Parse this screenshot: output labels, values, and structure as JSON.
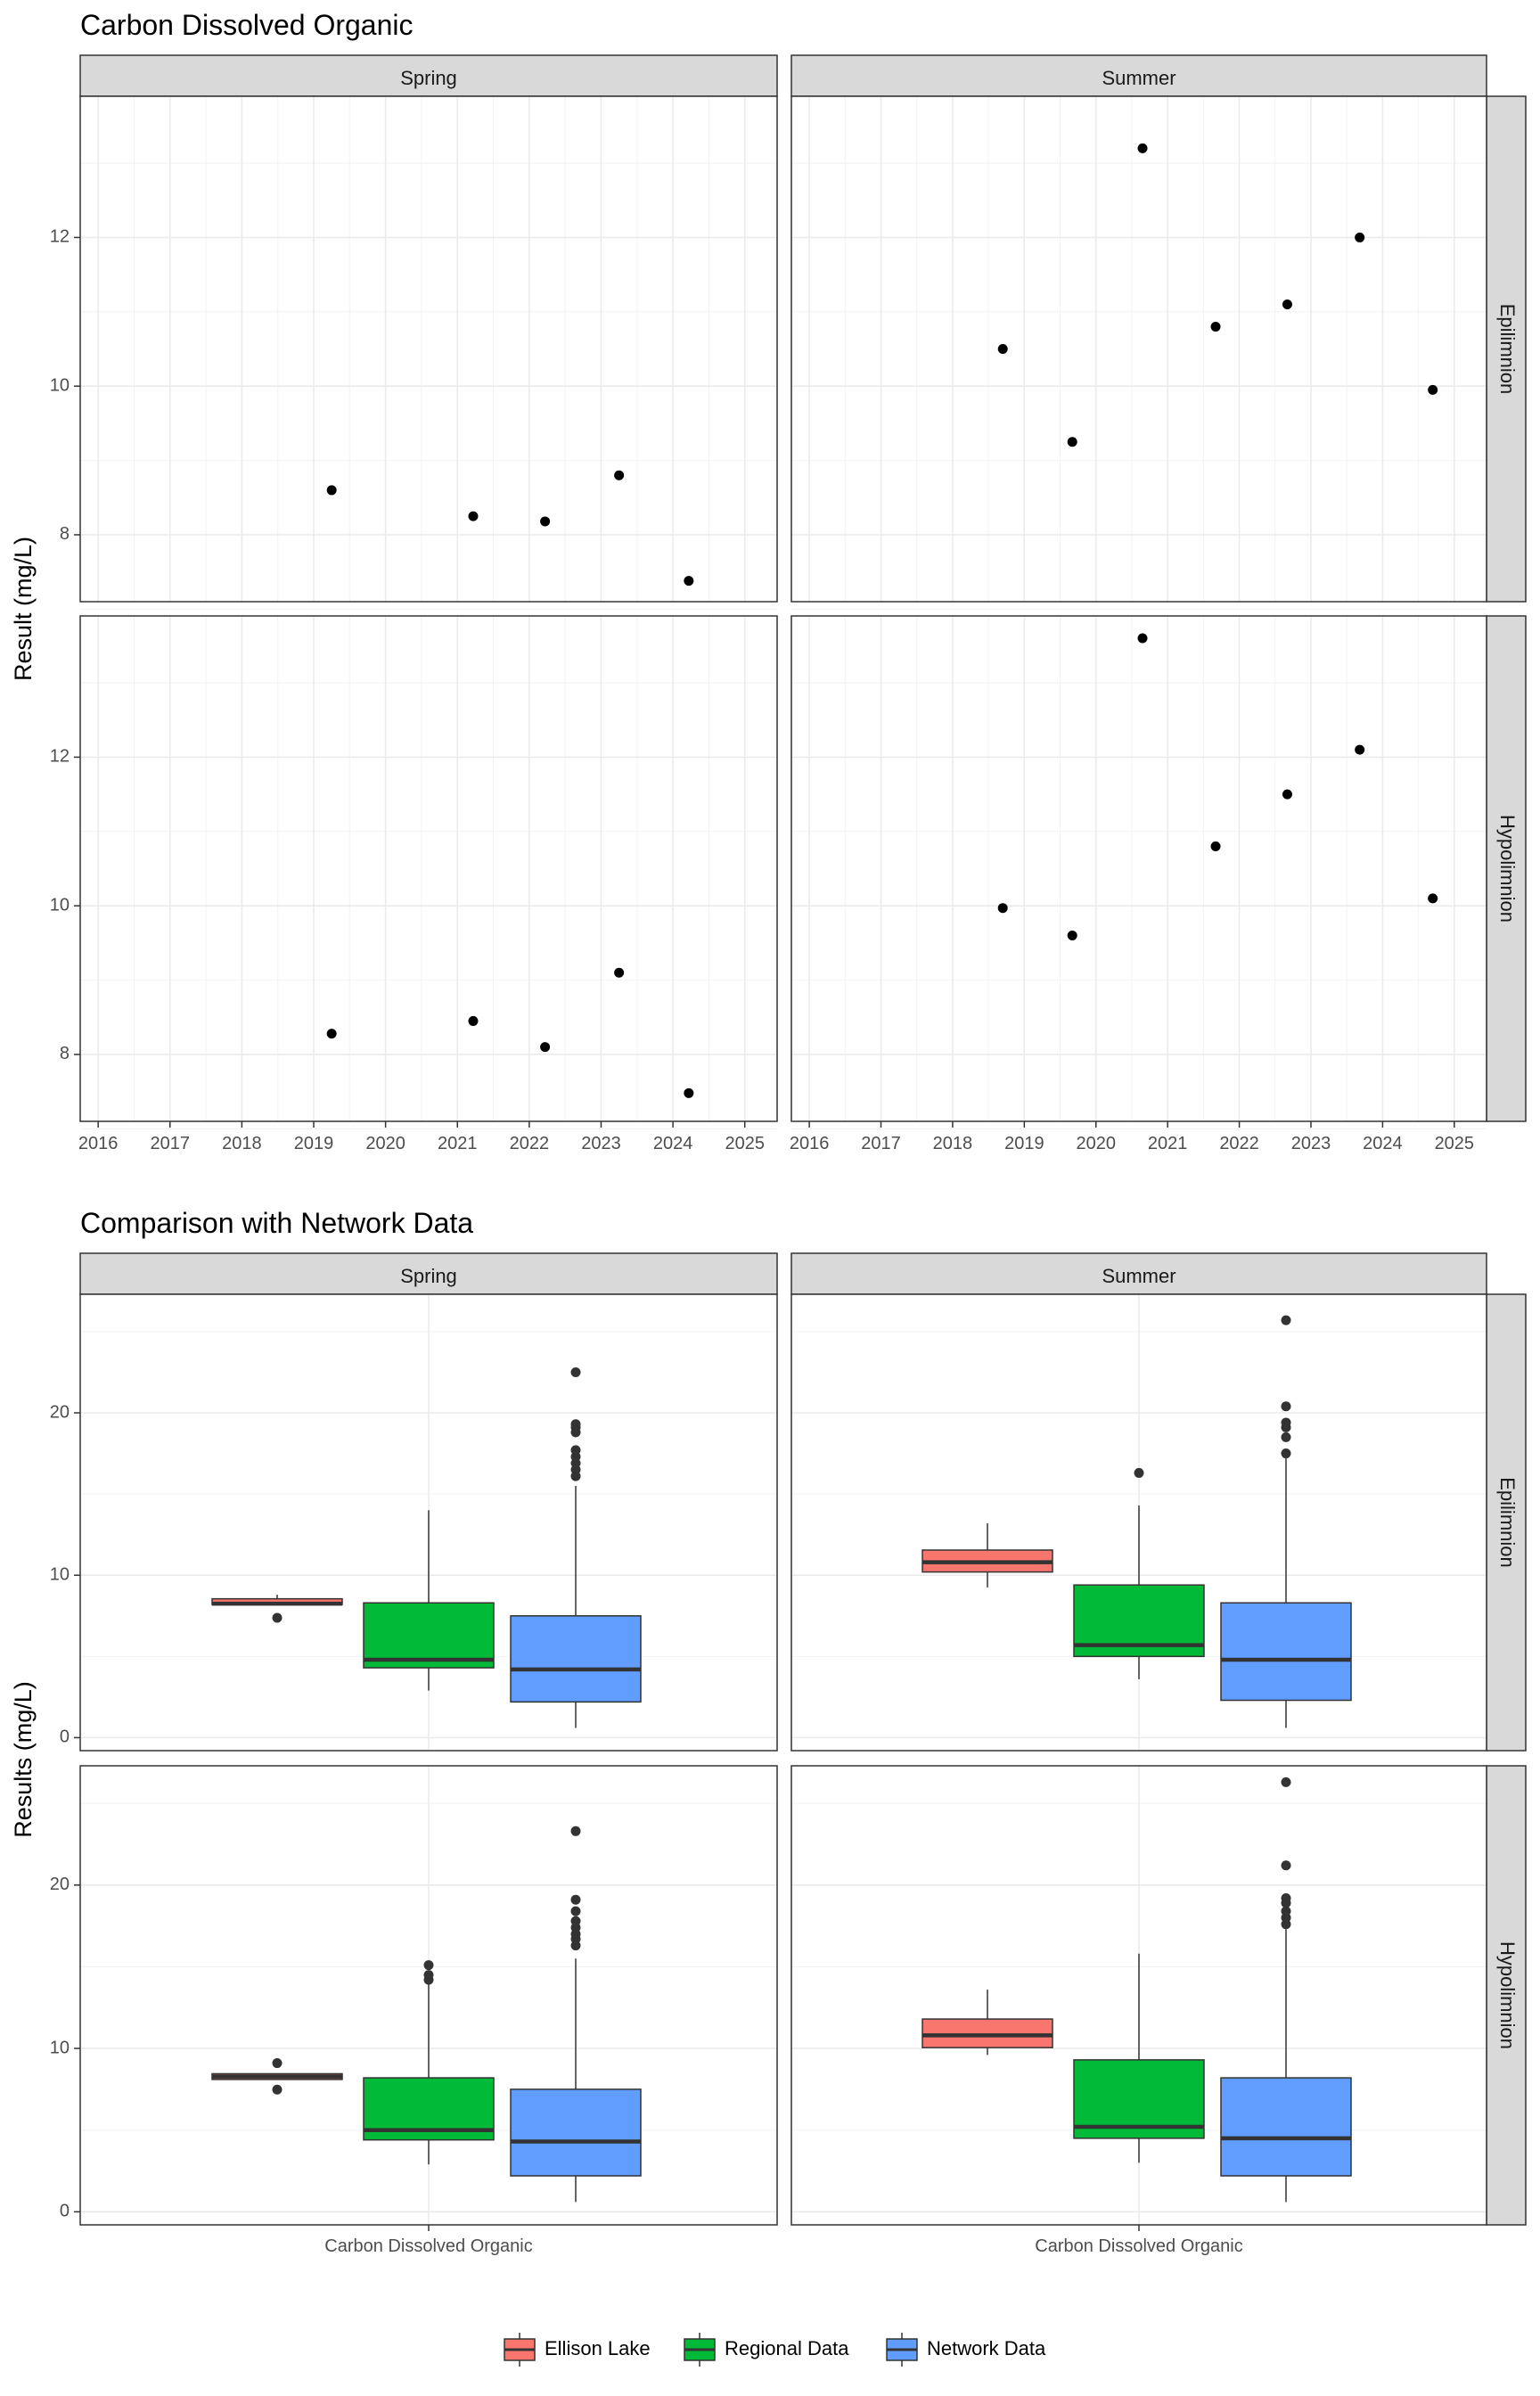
{
  "chart_data": [
    {
      "type": "scatter",
      "title": "Carbon Dissolved Organic",
      "ylabel": "Result (mg/L)",
      "xlabel": "",
      "x_range": [
        2015.75,
        2025.45
      ],
      "x_ticks": [
        2016,
        2017,
        2018,
        2019,
        2020,
        2021,
        2022,
        2023,
        2024,
        2025
      ],
      "y_range": [
        7.1,
        13.9
      ],
      "y_ticks": [
        8,
        10,
        12
      ],
      "grid": true,
      "columns": [
        "Spring",
        "Summer"
      ],
      "rows": [
        "Epilimnion",
        "Hypolimnion"
      ],
      "panels": [
        {
          "column": "Spring",
          "row": "Epilimnion",
          "points": [
            [
              2019.25,
              8.6
            ],
            [
              2021.22,
              8.25
            ],
            [
              2022.22,
              8.18
            ],
            [
              2023.25,
              8.8
            ],
            [
              2024.22,
              7.38
            ]
          ]
        },
        {
          "column": "Summer",
          "row": "Epilimnion",
          "points": [
            [
              2018.7,
              10.5
            ],
            [
              2019.67,
              9.25
            ],
            [
              2020.65,
              13.2
            ],
            [
              2021.67,
              10.8
            ],
            [
              2022.67,
              11.1
            ],
            [
              2023.68,
              12.0
            ],
            [
              2024.7,
              9.95
            ]
          ]
        },
        {
          "column": "Spring",
          "row": "Hypolimnion",
          "points": [
            [
              2019.25,
              8.28
            ],
            [
              2021.22,
              8.45
            ],
            [
              2022.22,
              8.1
            ],
            [
              2023.25,
              9.1
            ],
            [
              2024.22,
              7.48
            ]
          ]
        },
        {
          "column": "Summer",
          "row": "Hypolimnion",
          "points": [
            [
              2018.7,
              9.97
            ],
            [
              2019.67,
              9.6
            ],
            [
              2020.65,
              13.6
            ],
            [
              2021.67,
              10.8
            ],
            [
              2022.67,
              11.5
            ],
            [
              2023.68,
              12.1
            ],
            [
              2024.7,
              10.1
            ]
          ]
        }
      ]
    },
    {
      "type": "box",
      "title": "Comparison with Network Data",
      "ylabel": "Results (mg/L)",
      "category": "Carbon Dissolved Organic",
      "y_range": [
        -0.8,
        27.3
      ],
      "y_ticks": [
        0,
        10,
        20
      ],
      "grid": true,
      "columns": [
        "Spring",
        "Summer"
      ],
      "rows": [
        "Epilimnion",
        "Hypolimnion"
      ],
      "legend_position": "bottom",
      "series": [
        {
          "name": "Ellison Lake",
          "color": "#F8766D"
        },
        {
          "name": "Regional Data",
          "color": "#00BA38"
        },
        {
          "name": "Network Data",
          "color": "#619CFF"
        }
      ],
      "panels": [
        {
          "column": "Spring",
          "row": "Epilimnion",
          "boxes": [
            {
              "series": "Ellison Lake",
              "min": 8.2,
              "q1": 8.2,
              "median": 8.25,
              "q3": 8.55,
              "max": 8.8,
              "outliers": [
                7.38
              ]
            },
            {
              "series": "Regional Data",
              "min": 2.9,
              "q1": 4.3,
              "median": 4.8,
              "q3": 8.3,
              "max": 14.0,
              "outliers": []
            },
            {
              "series": "Network Data",
              "min": 0.6,
              "q1": 2.2,
              "median": 4.2,
              "q3": 7.5,
              "max": 15.5,
              "outliers": [
                16.1,
                16.5,
                16.9,
                17.3,
                17.7,
                18.8,
                19.1,
                19.3,
                22.5
              ]
            }
          ]
        },
        {
          "column": "Summer",
          "row": "Epilimnion",
          "boxes": [
            {
              "series": "Ellison Lake",
              "min": 9.25,
              "q1": 10.2,
              "median": 10.8,
              "q3": 11.55,
              "max": 13.2,
              "outliers": []
            },
            {
              "series": "Regional Data",
              "min": 3.6,
              "q1": 5.0,
              "median": 5.7,
              "q3": 9.4,
              "max": 14.3,
              "outliers": [
                16.3
              ]
            },
            {
              "series": "Network Data",
              "min": 0.6,
              "q1": 2.3,
              "median": 4.8,
              "q3": 8.3,
              "max": 17.2,
              "outliers": [
                17.5,
                18.5,
                19.1,
                19.4,
                20.4,
                25.7
              ]
            }
          ]
        },
        {
          "column": "Spring",
          "row": "Hypolimnion",
          "boxes": [
            {
              "series": "Ellison Lake",
              "min": 8.1,
              "q1": 8.1,
              "median": 8.28,
              "q3": 8.45,
              "max": 8.45,
              "outliers": [
                7.48,
                9.1
              ]
            },
            {
              "series": "Regional Data",
              "min": 2.9,
              "q1": 4.4,
              "median": 5.0,
              "q3": 8.2,
              "max": 14.0,
              "outliers": [
                14.2,
                14.5,
                15.1
              ]
            },
            {
              "series": "Network Data",
              "min": 0.6,
              "q1": 2.2,
              "median": 4.3,
              "q3": 7.5,
              "max": 15.5,
              "outliers": [
                16.3,
                16.7,
                17.0,
                17.4,
                17.8,
                18.4,
                19.1,
                23.3
              ]
            }
          ]
        },
        {
          "column": "Summer",
          "row": "Hypolimnion",
          "boxes": [
            {
              "series": "Ellison Lake",
              "min": 9.6,
              "q1": 10.05,
              "median": 10.8,
              "q3": 11.8,
              "max": 13.6,
              "outliers": []
            },
            {
              "series": "Regional Data",
              "min": 3.0,
              "q1": 4.5,
              "median": 5.2,
              "q3": 9.3,
              "max": 15.8,
              "outliers": []
            },
            {
              "series": "Network Data",
              "min": 0.6,
              "q1": 2.2,
              "median": 4.5,
              "q3": 8.2,
              "max": 17.3,
              "outliers": [
                17.6,
                18.0,
                18.4,
                18.9,
                19.2,
                21.2,
                26.3
              ]
            }
          ]
        }
      ]
    }
  ]
}
